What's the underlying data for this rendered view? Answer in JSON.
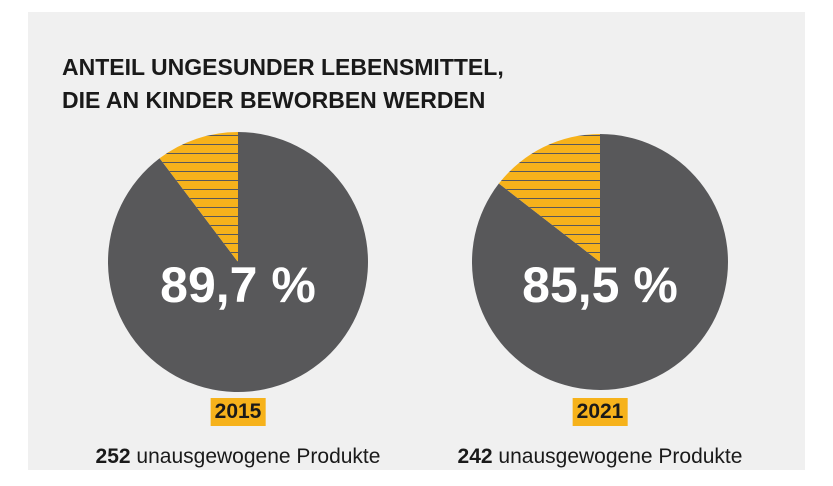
{
  "title": [
    "ANTEIL UNGESUNDER LEBENSMITTEL,",
    "DIE AN KINDER BEWORBEN WERDEN"
  ],
  "chart_data": [
    {
      "type": "pie",
      "year": "2015",
      "values": [
        89.7,
        10.3
      ],
      "value_labels": [
        "89,7 %",
        null
      ],
      "colors": [
        "#58585a",
        "#f6b21b"
      ],
      "hatch": [
        false,
        true
      ],
      "products": 252,
      "products_label": "unausgewogene Produkte"
    },
    {
      "type": "pie",
      "year": "2021",
      "values": [
        85.5,
        14.5
      ],
      "value_labels": [
        "85,5 %",
        null
      ],
      "colors": [
        "#58585a",
        "#f6b21b"
      ],
      "hatch": [
        false,
        true
      ],
      "products": 242,
      "products_label": "unausgewogene Produkte"
    }
  ]
}
